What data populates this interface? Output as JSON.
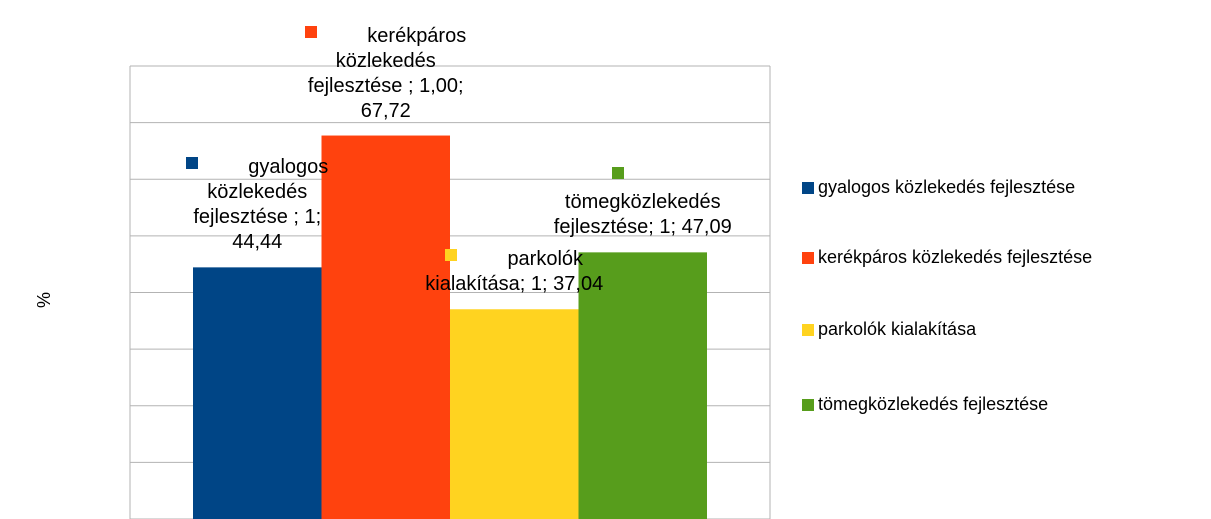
{
  "chart_data": {
    "type": "bar",
    "y_label": "%",
    "ylim": [
      0,
      80
    ],
    "yticks": [
      0,
      10,
      20,
      30,
      40,
      50,
      60,
      70,
      80
    ],
    "grid": true,
    "legend": "right",
    "series": [
      {
        "name": "gyalogos közlekedés fejlesztése",
        "color": "#004586",
        "values": [
          44.44
        ],
        "value_labels": [
          "gyalogos közlekedés fejlesztése ; 1; 44,44"
        ]
      },
      {
        "name": "kerékpáros közlekedés fejlesztése",
        "color": "#ff420e",
        "values": [
          67.72
        ],
        "value_labels": [
          "kerékpáros közlekedés fejlesztése ; 1,00; 67,72"
        ]
      },
      {
        "name": "parkolók kialakítása",
        "color": "#ffd320",
        "values": [
          37.04
        ],
        "value_labels": [
          "parkolók kialakítása; 1; 37,04"
        ]
      },
      {
        "name": "tömegközlekedés fejlesztése",
        "color": "#579d1c",
        "values": [
          47.09
        ],
        "value_labels": [
          "tömegközlekedés fejlesztése; 1; 47,09"
        ]
      }
    ]
  }
}
